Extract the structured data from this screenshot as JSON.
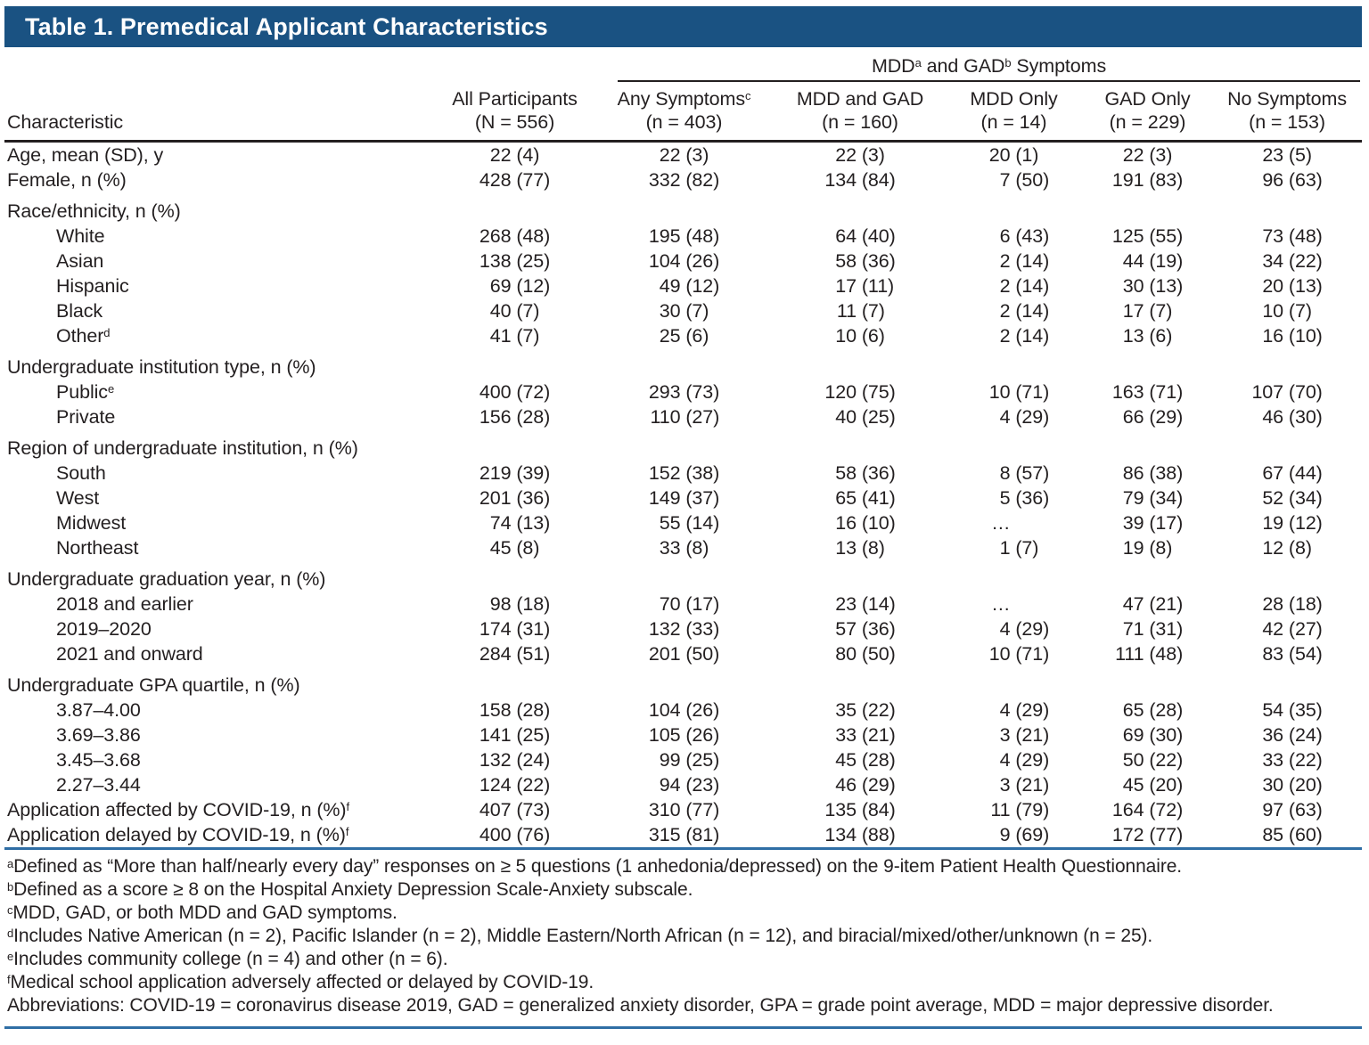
{
  "page": {
    "title": "Table 1. Premedical Applicant Characteristics"
  },
  "colors": {
    "title_bar": "#1A5282",
    "rule_blue": "#2F6EA5",
    "text": "#231F20",
    "title_text": "#FFFFFF"
  },
  "table": {
    "spanner": {
      "part1": "MDD",
      "sup1": "a",
      "part2": " and GAD",
      "sup2": "b",
      "part3": " Symptoms"
    },
    "characteristic_header": "Characteristic",
    "columns": [
      {
        "label": "All Participants",
        "sup": "",
        "n": "(N = 556)"
      },
      {
        "label": "Any Symptoms",
        "sup": "c",
        "n": "(n = 403)"
      },
      {
        "label": "MDD and GAD",
        "sup": "",
        "n": "(n = 160)"
      },
      {
        "label": "MDD Only",
        "sup": "",
        "n": "(n = 14)"
      },
      {
        "label": "GAD Only",
        "sup": "",
        "n": "(n = 229)"
      },
      {
        "label": "No Symptoms",
        "sup": "",
        "n": "(n = 153)"
      }
    ],
    "rows": [
      {
        "label": "Age, mean (SD), y",
        "sup": "",
        "indent": 0,
        "group": false,
        "values": [
          "22 (4)",
          "22 (3)",
          "22 (3)",
          "20 (1)",
          "22 (3)",
          "23 (5)"
        ]
      },
      {
        "label": "Female, n (%)",
        "sup": "",
        "indent": 0,
        "group": false,
        "values": [
          "428 (77)",
          "332 (82)",
          "134 (84)",
          "7 (50)",
          "191 (83)",
          "96 (63)"
        ]
      },
      {
        "label": "Race/ethnicity, n (%)",
        "sup": "",
        "indent": 0,
        "group": true,
        "values": [
          "",
          "",
          "",
          "",
          "",
          ""
        ]
      },
      {
        "label": "White",
        "sup": "",
        "indent": 1,
        "group": false,
        "values": [
          "268 (48)",
          "195 (48)",
          "64 (40)",
          "6 (43)",
          "125 (55)",
          "73 (48)"
        ]
      },
      {
        "label": "Asian",
        "sup": "",
        "indent": 1,
        "group": false,
        "values": [
          "138 (25)",
          "104 (26)",
          "58 (36)",
          "2 (14)",
          "44 (19)",
          "34 (22)"
        ]
      },
      {
        "label": "Hispanic",
        "sup": "",
        "indent": 1,
        "group": false,
        "values": [
          "69 (12)",
          "49 (12)",
          "17 (11)",
          "2 (14)",
          "30 (13)",
          "20 (13)"
        ]
      },
      {
        "label": "Black",
        "sup": "",
        "indent": 1,
        "group": false,
        "values": [
          "40 (7)",
          "30 (7)",
          "11 (7)",
          "2 (14)",
          "17 (7)",
          "10 (7)"
        ]
      },
      {
        "label": "Other",
        "sup": "d",
        "indent": 1,
        "group": false,
        "values": [
          "41 (7)",
          "25 (6)",
          "10 (6)",
          "2 (14)",
          "13 (6)",
          "16 (10)"
        ]
      },
      {
        "label": "Undergraduate institution type, n (%)",
        "sup": "",
        "indent": 0,
        "group": true,
        "values": [
          "",
          "",
          "",
          "",
          "",
          ""
        ]
      },
      {
        "label": "Public",
        "sup": "e",
        "indent": 1,
        "group": false,
        "values": [
          "400 (72)",
          "293 (73)",
          "120 (75)",
          "10 (71)",
          "163 (71)",
          "107 (70)"
        ]
      },
      {
        "label": "Private",
        "sup": "",
        "indent": 1,
        "group": false,
        "values": [
          "156 (28)",
          "110 (27)",
          "40 (25)",
          "4 (29)",
          "66 (29)",
          "46 (30)"
        ]
      },
      {
        "label": "Region of undergraduate institution, n (%)",
        "sup": "",
        "indent": 0,
        "group": true,
        "values": [
          "",
          "",
          "",
          "",
          "",
          ""
        ]
      },
      {
        "label": "South",
        "sup": "",
        "indent": 1,
        "group": false,
        "values": [
          "219 (39)",
          "152 (38)",
          "58 (36)",
          "8 (57)",
          "86 (38)",
          "67 (44)"
        ]
      },
      {
        "label": "West",
        "sup": "",
        "indent": 1,
        "group": false,
        "values": [
          "201 (36)",
          "149 (37)",
          "65 (41)",
          "5 (36)",
          "79 (34)",
          "52 (34)"
        ]
      },
      {
        "label": "Midwest",
        "sup": "",
        "indent": 1,
        "group": false,
        "values": [
          "74 (13)",
          "55 (14)",
          "16 (10)",
          "…",
          "39 (17)",
          "19 (12)"
        ]
      },
      {
        "label": "Northeast",
        "sup": "",
        "indent": 1,
        "group": false,
        "values": [
          "45 (8)",
          "33 (8)",
          "13 (8)",
          "1 (7)",
          "19 (8)",
          "12 (8)"
        ]
      },
      {
        "label": "Undergraduate graduation year, n (%)",
        "sup": "",
        "indent": 0,
        "group": true,
        "values": [
          "",
          "",
          "",
          "",
          "",
          ""
        ]
      },
      {
        "label": "2018 and earlier",
        "sup": "",
        "indent": 1,
        "group": false,
        "values": [
          "98 (18)",
          "70 (17)",
          "23 (14)",
          "…",
          "47 (21)",
          "28 (18)"
        ]
      },
      {
        "label": "2019–2020",
        "sup": "",
        "indent": 1,
        "group": false,
        "values": [
          "174 (31)",
          "132 (33)",
          "57 (36)",
          "4 (29)",
          "71 (31)",
          "42 (27)"
        ]
      },
      {
        "label": "2021 and onward",
        "sup": "",
        "indent": 1,
        "group": false,
        "values": [
          "284 (51)",
          "201 (50)",
          "80 (50)",
          "10 (71)",
          "111 (48)",
          "83 (54)"
        ]
      },
      {
        "label": "Undergraduate GPA quartile, n (%)",
        "sup": "",
        "indent": 0,
        "group": true,
        "values": [
          "",
          "",
          "",
          "",
          "",
          ""
        ]
      },
      {
        "label": "3.87–4.00",
        "sup": "",
        "indent": 1,
        "group": false,
        "values": [
          "158 (28)",
          "104 (26)",
          "35 (22)",
          "4 (29)",
          "65 (28)",
          "54 (35)"
        ]
      },
      {
        "label": "3.69–3.86",
        "sup": "",
        "indent": 1,
        "group": false,
        "values": [
          "141 (25)",
          "105 (26)",
          "33 (21)",
          "3 (21)",
          "69 (30)",
          "36 (24)"
        ]
      },
      {
        "label": "3.45–3.68",
        "sup": "",
        "indent": 1,
        "group": false,
        "values": [
          "132 (24)",
          "99 (25)",
          "45 (28)",
          "4 (29)",
          "50 (22)",
          "33 (22)"
        ]
      },
      {
        "label": "2.27–3.44",
        "sup": "",
        "indent": 1,
        "group": false,
        "values": [
          "124 (22)",
          "94 (23)",
          "46 (29)",
          "3 (21)",
          "45 (20)",
          "30 (20)"
        ]
      },
      {
        "label": "Application affected by COVID-19, n (%)",
        "sup": "f",
        "indent": 0,
        "group": false,
        "values": [
          "407 (73)",
          "310 (77)",
          "135 (84)",
          "11 (79)",
          "164 (72)",
          "97 (63)"
        ]
      },
      {
        "label": "Application delayed by COVID-19, n (%)",
        "sup": "f",
        "indent": 0,
        "group": false,
        "values": [
          "400 (76)",
          "315 (81)",
          "134 (88)",
          "9 (69)",
          "172 (77)",
          "85 (60)"
        ]
      }
    ]
  },
  "footnotes": [
    {
      "sup": "a",
      "text": "Defined as “More than half/nearly every day” responses on ≥ 5 questions (1 anhedonia/depressed) on the 9-item Patient Health Questionnaire."
    },
    {
      "sup": "b",
      "text": "Defined as a score ≥ 8 on the Hospital Anxiety Depression Scale-Anxiety subscale."
    },
    {
      "sup": "c",
      "text": "MDD, GAD, or both MDD and GAD symptoms."
    },
    {
      "sup": "d",
      "text": "Includes Native American (n = 2), Pacific Islander (n = 2), Middle Eastern/North African (n = 12), and biracial/mixed/other/unknown (n = 25)."
    },
    {
      "sup": "e",
      "text": "Includes community college (n = 4) and other (n = 6)."
    },
    {
      "sup": "f",
      "text": "Medical school application adversely affected or delayed by COVID-19."
    },
    {
      "sup": "",
      "text": "Abbreviations: COVID-19 = coronavirus disease 2019, GAD = generalized anxiety disorder, GPA = grade point average, MDD = major depressive disorder."
    }
  ]
}
